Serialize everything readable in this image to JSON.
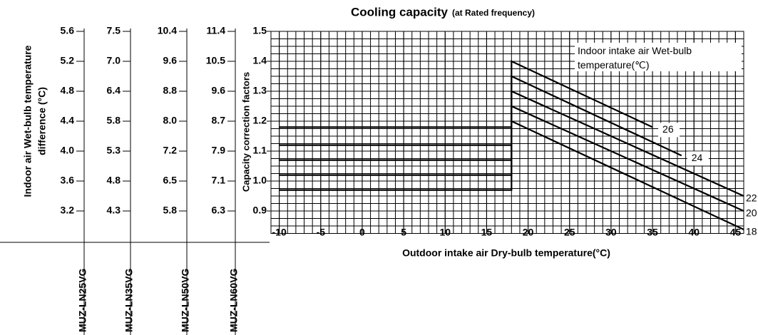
{
  "chart_data": {
    "type": "line",
    "title": "Cooling capacity",
    "subtitle": "(at Rated frequency)",
    "xlabel": "Outdoor intake air Dry-bulb temperature(°C)",
    "ylabel": "Capacity correction factors",
    "legend_title": "Indoor intake air Wet-bulb temperature(℃)",
    "xlim": [
      -11,
      46
    ],
    "ylim": [
      0.825,
      1.5
    ],
    "xticks": [
      -10,
      -5,
      0,
      5,
      10,
      15,
      20,
      25,
      30,
      35,
      40,
      45
    ],
    "yticks": [
      0.9,
      {
        "value": 1,
        "label": "1.0"
      },
      1.1,
      1.2,
      1.3,
      1.4,
      1.5
    ],
    "grid": true,
    "series": [
      {
        "name": "18",
        "color": "#000000",
        "x": [
          -10,
          18,
          18,
          46
        ],
        "values": [
          0.97,
          0.97,
          1.2,
          0.838
        ]
      },
      {
        "name": "20",
        "color": "#000000",
        "x": [
          -10,
          18,
          18,
          46
        ],
        "values": [
          1.02,
          1.02,
          1.25,
          0.9
        ]
      },
      {
        "name": "22",
        "color": "#000000",
        "x": [
          -10,
          18,
          18,
          46
        ],
        "values": [
          1.07,
          1.07,
          1.3,
          0.95
        ]
      },
      {
        "name": "24",
        "color": "#000000",
        "x": [
          -10,
          18,
          18,
          38.5
        ],
        "values": [
          1.12,
          1.12,
          1.35,
          1.085
        ]
      },
      {
        "name": "26",
        "color": "#000000",
        "x": [
          -10,
          18,
          18,
          35
        ],
        "values": [
          1.18,
          1.18,
          1.4,
          1.18
        ]
      }
    ]
  },
  "scale_table": {
    "ylabel": [
      "Indoor air Wet-bulb temperature",
      "difference (°C)"
    ],
    "columns": [
      {
        "name": "MUZ-LN25VG",
        "values": [
          5.6,
          5.2,
          4.8,
          4.4,
          {
            "value": 4,
            "label": "4.0"
          },
          3.6,
          3.2
        ]
      },
      {
        "name": "MUZ-LN35VG",
        "values": [
          7.5,
          {
            "value": 7,
            "label": "7.0"
          },
          6.4,
          5.8,
          5.3,
          4.8,
          4.3
        ]
      },
      {
        "name": "MUZ-LN50VG",
        "values": [
          10.4,
          9.6,
          8.8,
          {
            "value": 8,
            "label": "8.0"
          },
          7.2,
          6.5,
          5.8
        ]
      },
      {
        "name": "MUZ-LN60VG",
        "values": [
          11.4,
          10.5,
          9.6,
          8.7,
          7.9,
          7.1,
          6.3
        ]
      }
    ]
  }
}
